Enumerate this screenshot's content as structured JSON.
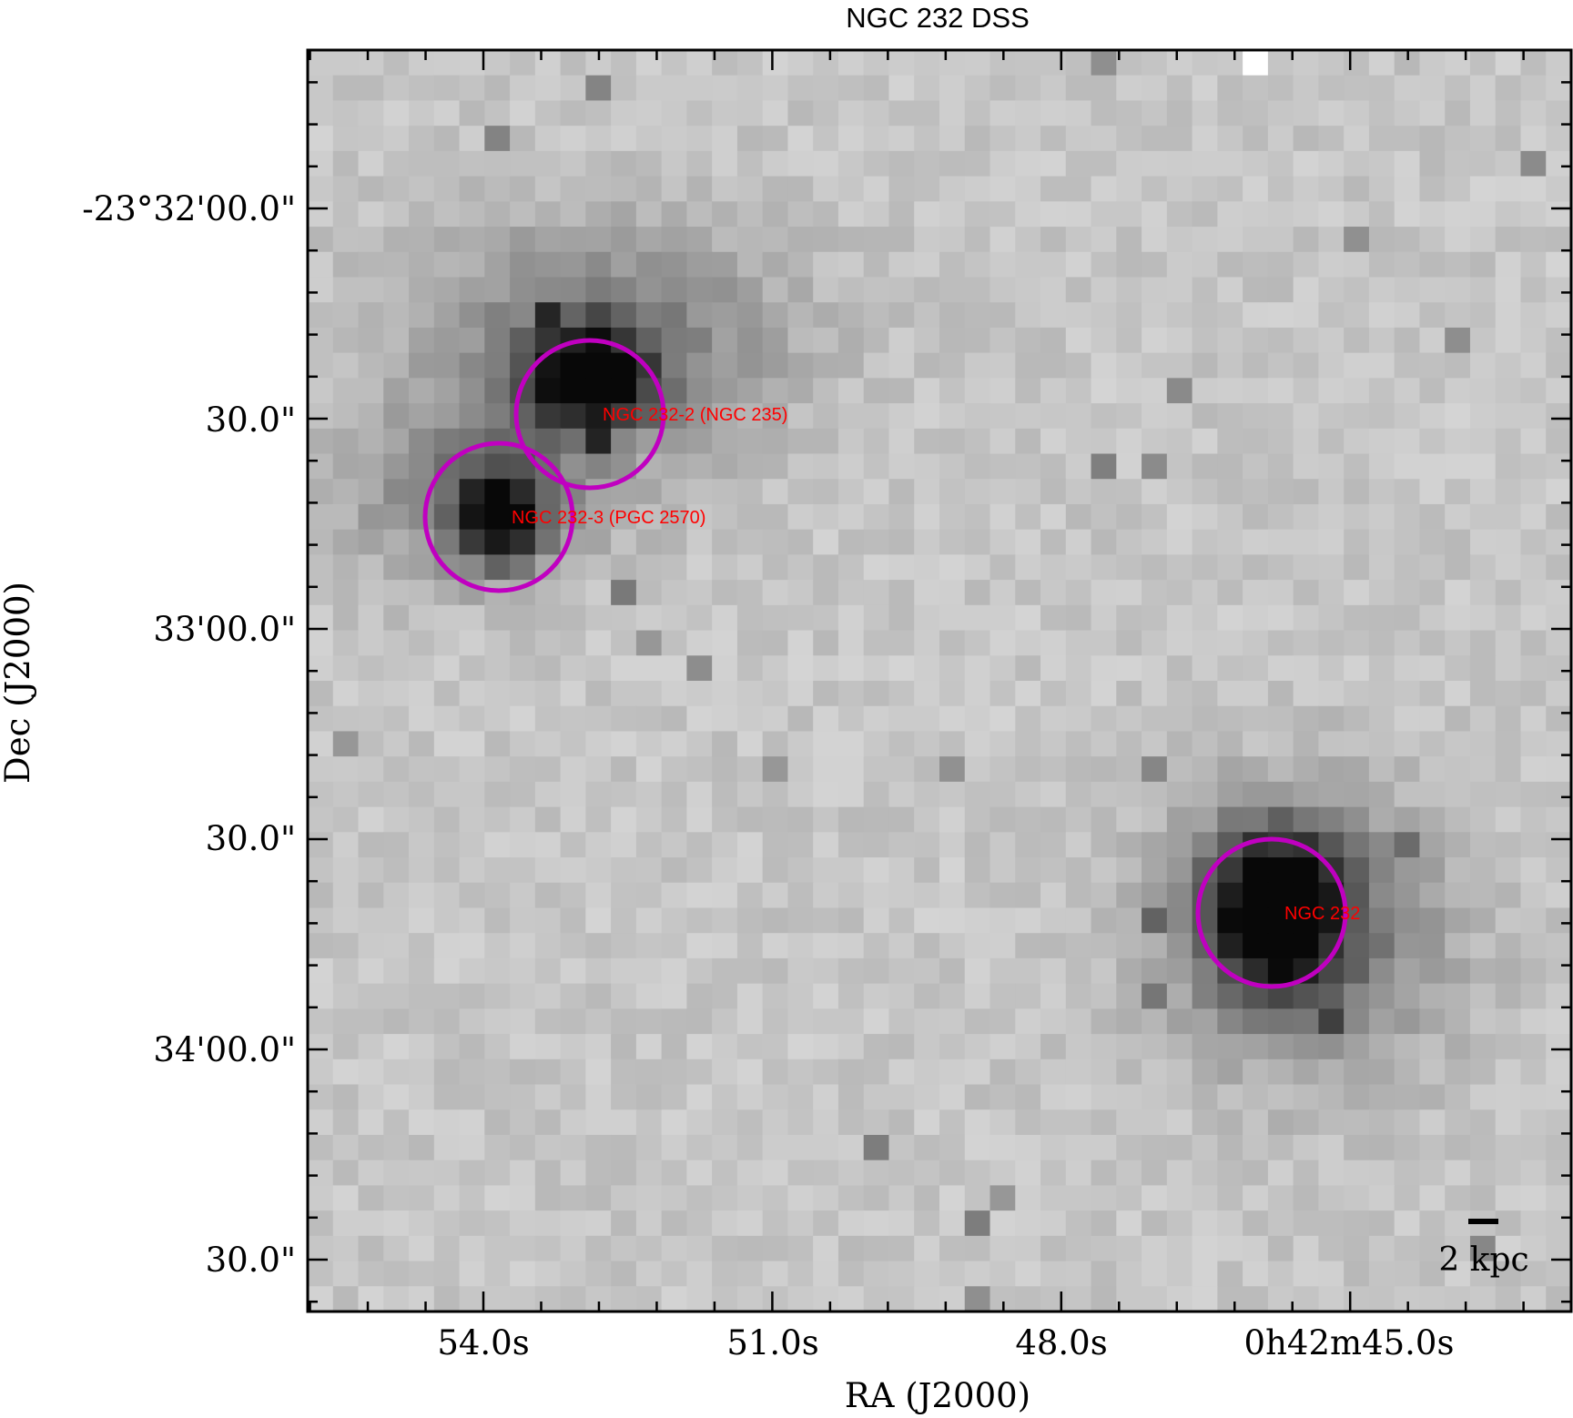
{
  "chart_data": {
    "type": "image",
    "title": "NGC 232 DSS",
    "x_label": "RA (J2000)",
    "y_label": "Dec (J2000)",
    "xtick_labels": [
      "54.0s",
      "51.0s",
      "48.0s",
      "0h42m45.0s"
    ],
    "ytick_labels": [
      "-23°32'00.0\"",
      "30.0\"",
      "33'00.0\"",
      "30.0\"",
      "34'00.0\"",
      "30.0\""
    ],
    "annotations": [
      "NGC 232-2 (NGC 235)",
      "NGC 232-3 (PGC 2570)",
      "NGC 232"
    ],
    "circle_color": "#c000c0",
    "annotation_color": "#ff0000",
    "scale_bar_label": "2 kpc"
  }
}
